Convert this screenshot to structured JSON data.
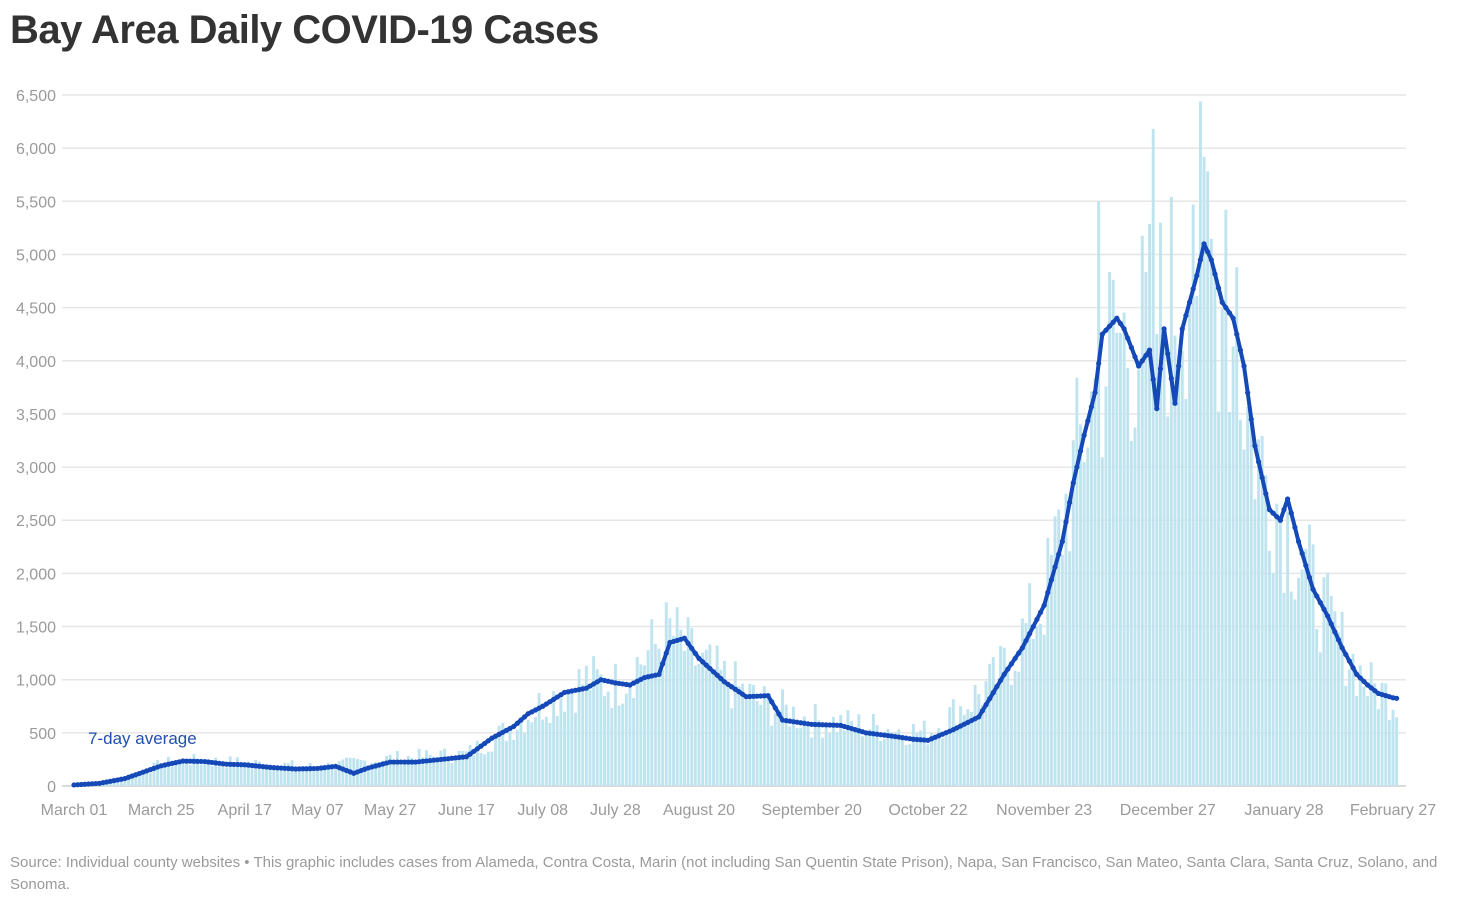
{
  "chart_data": {
    "type": "bar",
    "title": "Bay Area Daily COVID-19 Cases",
    "source": "Source: Individual county websites • This graphic includes cases from Alameda, Contra Costa, Marin (not including San Quentin State Prison), Napa, San Francisco, San Mateo, Santa Clara, Santa Cruz, Solano, and Sonoma.",
    "ylim": [
      0,
      6500
    ],
    "yticks": [
      0,
      500,
      1000,
      1500,
      2000,
      2500,
      3000,
      3500,
      4000,
      4500,
      5000,
      5500,
      6000,
      6500
    ],
    "ytick_labels": [
      "0",
      "500",
      "1,000",
      "1,500",
      "2,000",
      "2,500",
      "3,000",
      "3,500",
      "4,000",
      "4,500",
      "5,000",
      "5,500",
      "6,000",
      "6,500"
    ],
    "x_start": "2020-03-01",
    "x_end": "2021-03-01",
    "xtick_dates": [
      "2020-03-01",
      "2020-03-25",
      "2020-04-17",
      "2020-05-07",
      "2020-05-27",
      "2020-06-17",
      "2020-07-08",
      "2020-07-28",
      "2020-08-20",
      "2020-09-20",
      "2020-10-22",
      "2020-11-23",
      "2020-12-27",
      "2021-01-28",
      "2021-02-27"
    ],
    "xtick_labels": [
      "March 01",
      "March 25",
      "April 17",
      "May 07",
      "May 27",
      "June 17",
      "July 08",
      "July 28",
      "August 20",
      "September 20",
      "October 22",
      "November 23",
      "December 27",
      "January 28",
      "February 27"
    ],
    "grid": true,
    "annotation": "7-day average",
    "series": [
      {
        "name": "7-day average",
        "type": "line",
        "color": "#1549b8",
        "points": [
          [
            "2020-03-01",
            10
          ],
          [
            "2020-03-08",
            25
          ],
          [
            "2020-03-15",
            70
          ],
          [
            "2020-03-20",
            130
          ],
          [
            "2020-03-25",
            190
          ],
          [
            "2020-03-31",
            235
          ],
          [
            "2020-04-06",
            230
          ],
          [
            "2020-04-12",
            205
          ],
          [
            "2020-04-17",
            200
          ],
          [
            "2020-04-24",
            175
          ],
          [
            "2020-05-01",
            160
          ],
          [
            "2020-05-07",
            165
          ],
          [
            "2020-05-12",
            185
          ],
          [
            "2020-05-17",
            120
          ],
          [
            "2020-05-21",
            170
          ],
          [
            "2020-05-27",
            225
          ],
          [
            "2020-06-03",
            225
          ],
          [
            "2020-06-10",
            250
          ],
          [
            "2020-06-17",
            275
          ],
          [
            "2020-06-24",
            450
          ],
          [
            "2020-06-30",
            560
          ],
          [
            "2020-07-04",
            680
          ],
          [
            "2020-07-08",
            750
          ],
          [
            "2020-07-14",
            880
          ],
          [
            "2020-07-20",
            920
          ],
          [
            "2020-07-24",
            1000
          ],
          [
            "2020-07-28",
            970
          ],
          [
            "2020-08-01",
            950
          ],
          [
            "2020-08-05",
            1020
          ],
          [
            "2020-08-09",
            1050
          ],
          [
            "2020-08-12",
            1350
          ],
          [
            "2020-08-16",
            1390
          ],
          [
            "2020-08-20",
            1200
          ],
          [
            "2020-08-27",
            980
          ],
          [
            "2020-09-02",
            840
          ],
          [
            "2020-09-08",
            850
          ],
          [
            "2020-09-12",
            620
          ],
          [
            "2020-09-20",
            580
          ],
          [
            "2020-09-28",
            570
          ],
          [
            "2020-10-05",
            500
          ],
          [
            "2020-10-12",
            470
          ],
          [
            "2020-10-18",
            440
          ],
          [
            "2020-10-22",
            430
          ],
          [
            "2020-10-29",
            530
          ],
          [
            "2020-11-05",
            650
          ],
          [
            "2020-11-12",
            1050
          ],
          [
            "2020-11-17",
            1300
          ],
          [
            "2020-11-23",
            1700
          ],
          [
            "2020-11-28",
            2300
          ],
          [
            "2020-12-01",
            2850
          ],
          [
            "2020-12-04",
            3300
          ],
          [
            "2020-12-07",
            3700
          ],
          [
            "2020-12-09",
            4250
          ],
          [
            "2020-12-13",
            4400
          ],
          [
            "2020-12-15",
            4300
          ],
          [
            "2020-12-19",
            3950
          ],
          [
            "2020-12-22",
            4100
          ],
          [
            "2020-12-24",
            3550
          ],
          [
            "2020-12-26",
            4300
          ],
          [
            "2020-12-29",
            3600
          ],
          [
            "2020-12-31",
            4300
          ],
          [
            "2021-01-04",
            4800
          ],
          [
            "2021-01-06",
            5100
          ],
          [
            "2021-01-08",
            4950
          ],
          [
            "2021-01-11",
            4550
          ],
          [
            "2021-01-14",
            4400
          ],
          [
            "2021-01-17",
            3950
          ],
          [
            "2021-01-20",
            3200
          ],
          [
            "2021-01-24",
            2600
          ],
          [
            "2021-01-27",
            2500
          ],
          [
            "2021-01-29",
            2700
          ],
          [
            "2021-02-01",
            2300
          ],
          [
            "2021-02-05",
            1850
          ],
          [
            "2021-02-09",
            1600
          ],
          [
            "2021-02-13",
            1300
          ],
          [
            "2021-02-17",
            1050
          ],
          [
            "2021-02-20",
            950
          ],
          [
            "2021-02-23",
            870
          ],
          [
            "2021-02-27",
            830
          ],
          [
            "2021-03-01",
            820
          ]
        ]
      },
      {
        "name": "Daily cases",
        "type": "bar",
        "color": "#bfe4ef",
        "points": [
          [
            "2020-03-01",
            10
          ],
          [
            "2020-03-10",
            40
          ],
          [
            "2020-03-20",
            130
          ],
          [
            "2020-03-25",
            210
          ],
          [
            "2020-04-01",
            240
          ],
          [
            "2020-04-10",
            230
          ],
          [
            "2020-04-17",
            220
          ],
          [
            "2020-05-07",
            180
          ],
          [
            "2020-05-27",
            260
          ],
          [
            "2020-06-17",
            300
          ],
          [
            "2020-06-27",
            500
          ],
          [
            "2020-07-08",
            780
          ],
          [
            "2020-07-20",
            1000
          ],
          [
            "2020-07-28",
            950
          ],
          [
            "2020-08-12",
            1450
          ],
          [
            "2020-08-20",
            1150
          ],
          [
            "2020-09-05",
            800
          ],
          [
            "2020-09-20",
            620
          ],
          [
            "2020-10-22",
            500
          ],
          [
            "2020-11-10",
            1000
          ],
          [
            "2020-11-23",
            1750
          ],
          [
            "2020-12-05",
            3500
          ],
          [
            "2020-12-12",
            4200
          ],
          [
            "2020-12-20",
            4200
          ],
          [
            "2020-12-27",
            4500
          ],
          [
            "2021-01-05",
            5100
          ],
          [
            "2021-01-12",
            4500
          ],
          [
            "2021-01-20",
            3200
          ],
          [
            "2021-01-28",
            2500
          ],
          [
            "2021-02-10",
            1500
          ],
          [
            "2021-02-20",
            950
          ],
          [
            "2021-03-01",
            800
          ]
        ],
        "peak_days": [
          [
            "2020-12-08",
            5500
          ],
          [
            "2020-12-23",
            6180
          ],
          [
            "2021-01-06",
            5920
          ],
          [
            "2021-01-03",
            5470
          ],
          [
            "2021-01-12",
            5420
          ],
          [
            "2021-01-15",
            4880
          ]
        ]
      }
    ]
  }
}
